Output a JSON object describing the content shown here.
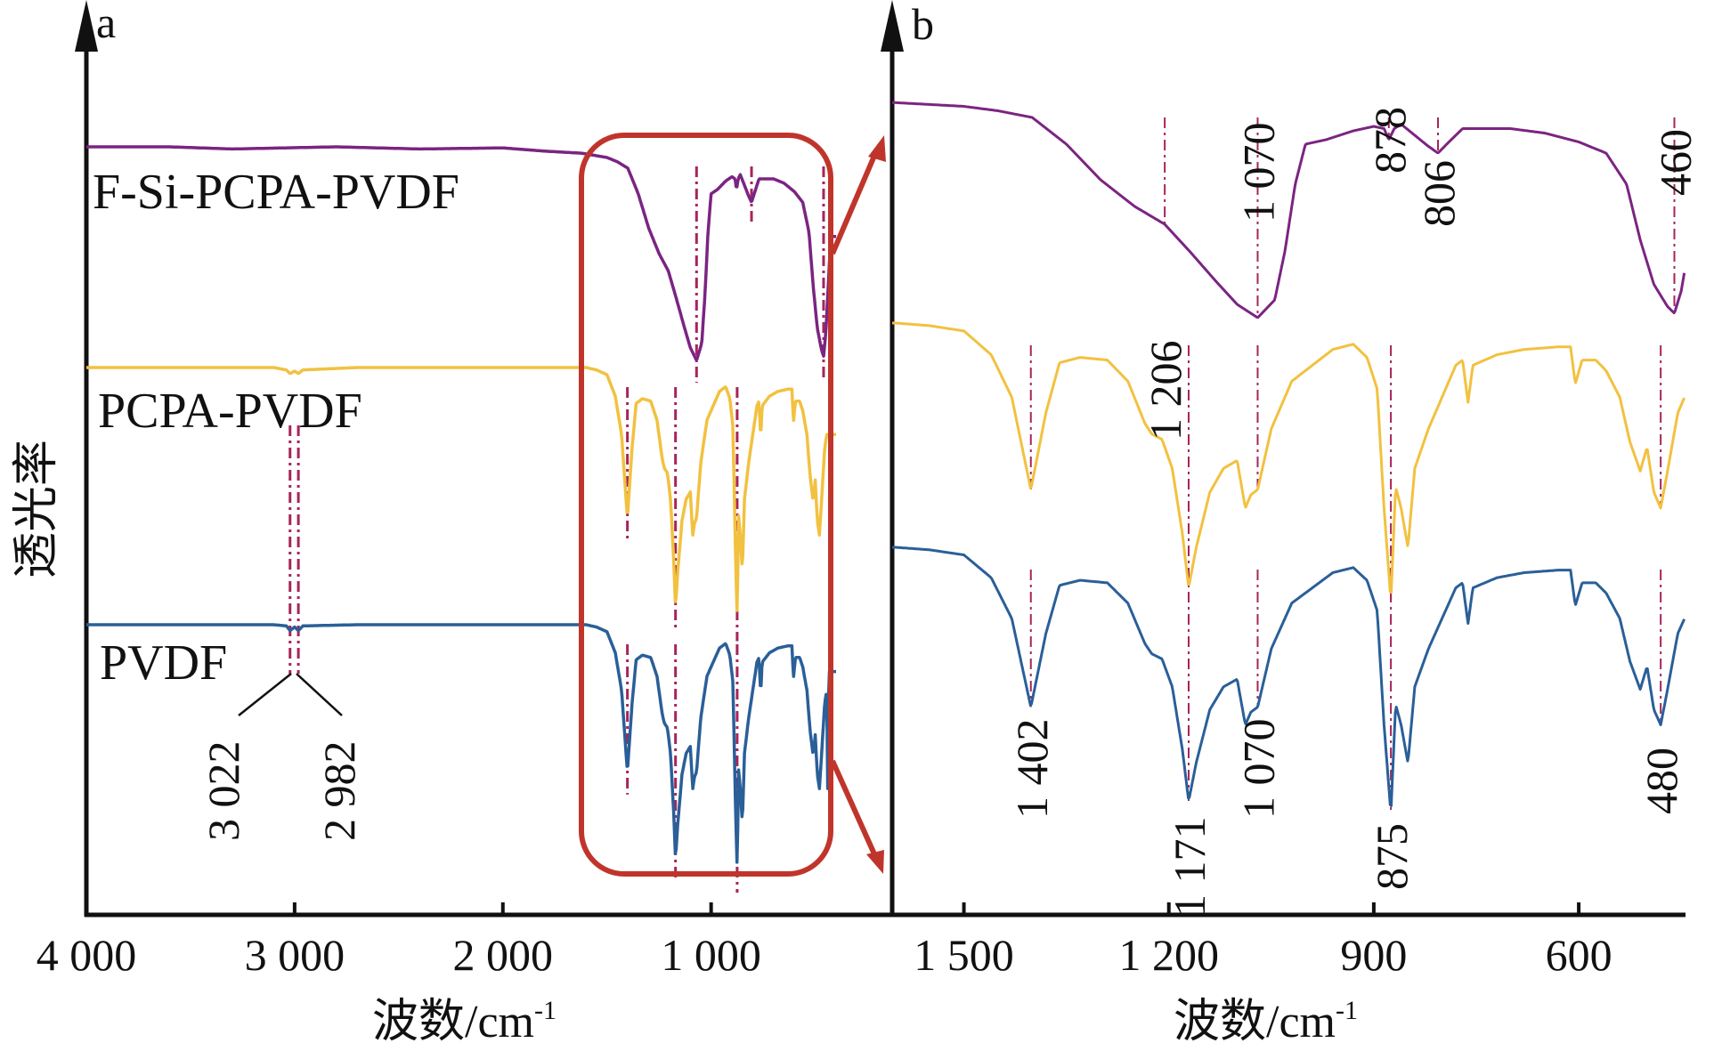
{
  "chart_data": [
    {
      "panel": "a",
      "type": "line",
      "title": "",
      "xlabel": "波数/cm-1",
      "xlabel_main": "波数/cm",
      "xlabel_sup": "-1",
      "ylabel": "透光率",
      "xlim": [
        4000,
        400
      ],
      "xaxis_reversed": true,
      "xticks": [
        4000,
        3000,
        2000,
        1000
      ],
      "xtick_labels": [
        "4 000",
        "3 000",
        "2 000",
        "1 000"
      ],
      "grid": false,
      "series": [
        {
          "name": "F-Si-PCPA-PVDF",
          "color": "#7b2482"
        },
        {
          "name": "PCPA-PVDF",
          "color": "#f2c140"
        },
        {
          "name": "PVDF",
          "color": "#2a5f98"
        }
      ],
      "annotations": [
        {
          "text": "3 022",
          "x": 3022
        },
        {
          "text": "2 982",
          "x": 2982
        }
      ],
      "highlight_box": {
        "x_range": [
          1400,
          420
        ],
        "color": "#c0352b",
        "note": "zoomed in panel b"
      }
    },
    {
      "panel": "b",
      "type": "line",
      "title": "",
      "xlabel": "波数/cm-1",
      "xlabel_main": "波数/cm",
      "xlabel_sup": "-1",
      "xlim": [
        1605,
        445
      ],
      "xaxis_reversed": true,
      "xticks": [
        1500,
        1200,
        900,
        600
      ],
      "xtick_labels": [
        "1 500",
        "1 200",
        "900",
        "600"
      ],
      "grid": false,
      "series": [
        {
          "name": "F-Si-PCPA-PVDF",
          "color": "#7b2482"
        },
        {
          "name": "PCPA-PVDF",
          "color": "#f2c140"
        },
        {
          "name": "PVDF",
          "color": "#2a5f98"
        }
      ],
      "annotations_top": [
        {
          "text": "1 206",
          "x": 1206
        },
        {
          "text": "1 070",
          "x": 1070
        },
        {
          "text": "878",
          "x": 878
        },
        {
          "text": "806",
          "x": 806
        },
        {
          "text": "460",
          "x": 460
        }
      ],
      "annotations_bottom": [
        {
          "text": "1 402",
          "x": 1402
        },
        {
          "text": "1 171",
          "x": 1171
        },
        {
          "text": "1 070",
          "x": 1070
        },
        {
          "text": "875",
          "x": 875
        },
        {
          "text": "480",
          "x": 480
        }
      ]
    }
  ],
  "spectra": {
    "F-Si-PCPA-PVDF": [
      [
        4000,
        1.0
      ],
      [
        3600,
        1.0
      ],
      [
        3300,
        0.99
      ],
      [
        2800,
        1.0
      ],
      [
        2400,
        0.99
      ],
      [
        2000,
        0.995
      ],
      [
        1800,
        0.98
      ],
      [
        1620,
        0.97
      ],
      [
        1560,
        0.96
      ],
      [
        1500,
        0.95
      ],
      [
        1450,
        0.93
      ],
      [
        1400,
        0.9
      ],
      [
        1350,
        0.78
      ],
      [
        1300,
        0.62
      ],
      [
        1250,
        0.5
      ],
      [
        1206,
        0.42
      ],
      [
        1170,
        0.3
      ],
      [
        1130,
        0.16
      ],
      [
        1100,
        0.06
      ],
      [
        1070,
        0.0
      ],
      [
        1045,
        0.08
      ],
      [
        1030,
        0.3
      ],
      [
        1015,
        0.6
      ],
      [
        1000,
        0.78
      ],
      [
        970,
        0.8
      ],
      [
        930,
        0.84
      ],
      [
        900,
        0.86
      ],
      [
        885,
        0.85
      ],
      [
        878,
        0.8
      ],
      [
        870,
        0.85
      ],
      [
        860,
        0.87
      ],
      [
        840,
        0.82
      ],
      [
        820,
        0.77
      ],
      [
        806,
        0.74
      ],
      [
        790,
        0.79
      ],
      [
        770,
        0.85
      ],
      [
        700,
        0.85
      ],
      [
        650,
        0.83
      ],
      [
        600,
        0.79
      ],
      [
        560,
        0.74
      ],
      [
        530,
        0.6
      ],
      [
        510,
        0.35
      ],
      [
        490,
        0.15
      ],
      [
        470,
        0.05
      ],
      [
        460,
        0.02
      ],
      [
        450,
        0.12
      ],
      [
        440,
        0.3
      ],
      [
        430,
        0.5
      ],
      [
        420,
        0.58
      ]
    ],
    "PCPA-PVDF": [
      [
        4000,
        1.0
      ],
      [
        3100,
        1.0
      ],
      [
        3040,
        0.99
      ],
      [
        3022,
        0.975
      ],
      [
        3000,
        0.985
      ],
      [
        2982,
        0.975
      ],
      [
        2960,
        0.99
      ],
      [
        2700,
        1.0
      ],
      [
        2000,
        1.0
      ],
      [
        1700,
        1.0
      ],
      [
        1600,
        1.0
      ],
      [
        1550,
        0.99
      ],
      [
        1500,
        0.97
      ],
      [
        1460,
        0.88
      ],
      [
        1430,
        0.72
      ],
      [
        1402,
        0.37
      ],
      [
        1380,
        0.66
      ],
      [
        1360,
        0.85
      ],
      [
        1330,
        0.87
      ],
      [
        1290,
        0.86
      ],
      [
        1260,
        0.78
      ],
      [
        1235,
        0.62
      ],
      [
        1225,
        0.58
      ],
      [
        1210,
        0.56
      ],
      [
        1195,
        0.45
      ],
      [
        1180,
        0.2
      ],
      [
        1171,
        0.0
      ],
      [
        1160,
        0.15
      ],
      [
        1140,
        0.36
      ],
      [
        1120,
        0.45
      ],
      [
        1100,
        0.48
      ],
      [
        1088,
        0.3
      ],
      [
        1080,
        0.35
      ],
      [
        1070,
        0.37
      ],
      [
        1050,
        0.6
      ],
      [
        1020,
        0.78
      ],
      [
        1000,
        0.82
      ],
      [
        960,
        0.9
      ],
      [
        930,
        0.92
      ],
      [
        910,
        0.87
      ],
      [
        895,
        0.75
      ],
      [
        885,
        0.3
      ],
      [
        875,
        -0.05
      ],
      [
        868,
        0.38
      ],
      [
        860,
        0.3
      ],
      [
        850,
        0.15
      ],
      [
        840,
        0.45
      ],
      [
        820,
        0.6
      ],
      [
        800,
        0.72
      ],
      [
        780,
        0.84
      ],
      [
        770,
        0.86
      ],
      [
        762,
        0.7
      ],
      [
        755,
        0.84
      ],
      [
        720,
        0.88
      ],
      [
        680,
        0.9
      ],
      [
        630,
        0.91
      ],
      [
        612,
        0.91
      ],
      [
        605,
        0.77
      ],
      [
        595,
        0.86
      ],
      [
        575,
        0.86
      ],
      [
        560,
        0.82
      ],
      [
        540,
        0.72
      ],
      [
        525,
        0.55
      ],
      [
        510,
        0.44
      ],
      [
        500,
        0.53
      ],
      [
        490,
        0.36
      ],
      [
        480,
        0.3
      ],
      [
        470,
        0.44
      ],
      [
        455,
        0.66
      ],
      [
        445,
        0.72
      ]
    ],
    "PVDF": [
      [
        4000,
        1.0
      ],
      [
        3100,
        1.0
      ],
      [
        3040,
        0.995
      ],
      [
        3022,
        0.975
      ],
      [
        3000,
        0.99
      ],
      [
        2982,
        0.975
      ],
      [
        2960,
        0.995
      ],
      [
        2700,
        1.0
      ],
      [
        2000,
        1.0
      ],
      [
        1700,
        1.0
      ],
      [
        1600,
        1.0
      ],
      [
        1550,
        0.99
      ],
      [
        1500,
        0.97
      ],
      [
        1460,
        0.88
      ],
      [
        1430,
        0.72
      ],
      [
        1402,
        0.37
      ],
      [
        1380,
        0.66
      ],
      [
        1360,
        0.85
      ],
      [
        1330,
        0.87
      ],
      [
        1290,
        0.86
      ],
      [
        1260,
        0.78
      ],
      [
        1235,
        0.62
      ],
      [
        1225,
        0.58
      ],
      [
        1210,
        0.56
      ],
      [
        1195,
        0.45
      ],
      [
        1180,
        0.2
      ],
      [
        1171,
        0.0
      ],
      [
        1160,
        0.15
      ],
      [
        1140,
        0.36
      ],
      [
        1120,
        0.45
      ],
      [
        1100,
        0.48
      ],
      [
        1088,
        0.3
      ],
      [
        1080,
        0.35
      ],
      [
        1070,
        0.37
      ],
      [
        1050,
        0.6
      ],
      [
        1020,
        0.78
      ],
      [
        1000,
        0.82
      ],
      [
        960,
        0.9
      ],
      [
        930,
        0.92
      ],
      [
        910,
        0.87
      ],
      [
        895,
        0.75
      ],
      [
        885,
        0.3
      ],
      [
        875,
        -0.05
      ],
      [
        868,
        0.38
      ],
      [
        860,
        0.3
      ],
      [
        850,
        0.15
      ],
      [
        840,
        0.45
      ],
      [
        820,
        0.6
      ],
      [
        800,
        0.72
      ],
      [
        780,
        0.84
      ],
      [
        770,
        0.86
      ],
      [
        762,
        0.7
      ],
      [
        755,
        0.84
      ],
      [
        720,
        0.88
      ],
      [
        680,
        0.9
      ],
      [
        630,
        0.91
      ],
      [
        612,
        0.91
      ],
      [
        605,
        0.77
      ],
      [
        595,
        0.86
      ],
      [
        575,
        0.86
      ],
      [
        560,
        0.82
      ],
      [
        540,
        0.72
      ],
      [
        525,
        0.55
      ],
      [
        510,
        0.44
      ],
      [
        500,
        0.53
      ],
      [
        490,
        0.36
      ],
      [
        480,
        0.3
      ],
      [
        470,
        0.44
      ],
      [
        455,
        0.66
      ],
      [
        445,
        0.72
      ],
      [
        440,
        0.3
      ],
      [
        435,
        0.8
      ]
    ]
  },
  "marker_lines": {
    "panel_a": {
      "F-Si-PCPA-PVDF": [
        1070,
        806,
        460
      ],
      "PCPA-PVDF": [
        1402,
        1171,
        875
      ],
      "PVDF": [
        1402,
        1171,
        875
      ],
      "high_wavenumber": [
        3022,
        2982
      ]
    },
    "panel_b": {
      "F-Si-PCPA-PVDF": [
        1206,
        1070,
        878,
        806,
        460
      ],
      "PCPA-PVDF": [
        1402,
        1171,
        1070,
        875,
        480
      ],
      "PVDF": [
        1402,
        1171,
        1070,
        875,
        480
      ]
    }
  },
  "colors": {
    "axis": "#111111",
    "highlight": "#c0352b",
    "marker_line": "#a8245a"
  }
}
